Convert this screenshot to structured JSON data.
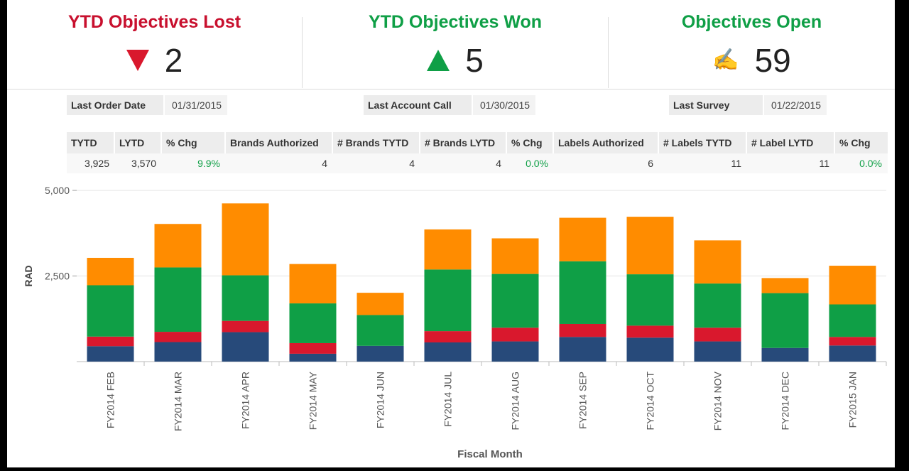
{
  "kpis": {
    "lost": {
      "title": "YTD Objectives Lost",
      "value": "2",
      "icon": "down-triangle-icon",
      "color": "#c8102e"
    },
    "won": {
      "title": "YTD Objectives Won",
      "value": "5",
      "icon": "up-triangle-icon",
      "color": "#0f9f46"
    },
    "open": {
      "title": "Objectives Open",
      "value": "59",
      "icon": "writing-hand-icon",
      "color": "#0f9f46"
    }
  },
  "dates": {
    "last_order": {
      "label": "Last Order Date",
      "value": "01/31/2015"
    },
    "last_call": {
      "label": "Last Account Call",
      "value": "01/30/2015"
    },
    "last_survey": {
      "label": "Last Survey",
      "value": "01/22/2015"
    }
  },
  "metrics": {
    "headers": [
      "TYTD",
      "LYTD",
      "% Chg",
      "Brands Authorized",
      "# Brands TYTD",
      "# Brands LYTD",
      "% Chg",
      "Labels Authorized",
      "# Labels TYTD",
      "# Label LYTD",
      "% Chg"
    ],
    "values": [
      "3,925",
      "3,570",
      "9.9%",
      "4",
      "4",
      "4",
      "0.0%",
      "6",
      "11",
      "11",
      "0.0%"
    ]
  },
  "colors": {
    "navy": "#274a7a",
    "red": "#d9182d",
    "green": "#0f9f46",
    "orange": "#ff8c00"
  },
  "chart_data": {
    "type": "bar",
    "stacked": true,
    "title": "",
    "xlabel": "Fiscal Month",
    "ylabel": "RAD",
    "ylim": [
      0,
      5000
    ],
    "yticks": [
      2500,
      5000
    ],
    "ytick_labels": [
      "2,500",
      "5,000"
    ],
    "categories": [
      "FY2014 FEB",
      "FY2014 MAR",
      "FY2014 APR",
      "FY2014 MAY",
      "FY2014 JUN",
      "FY2014 JUL",
      "FY2014 AUG",
      "FY2014 SEP",
      "FY2014 OCT",
      "FY2014 NOV",
      "FY2014 DEC",
      "FY2015 JAN"
    ],
    "series": [
      {
        "name": "navy",
        "color": "#274a7a",
        "values": [
          450,
          570,
          860,
          230,
          460,
          560,
          590,
          720,
          700,
          590,
          400,
          470
        ]
      },
      {
        "name": "red",
        "color": "#d9182d",
        "values": [
          280,
          300,
          330,
          310,
          0,
          330,
          400,
          380,
          350,
          400,
          0,
          250
        ]
      },
      {
        "name": "green",
        "color": "#0f9f46",
        "values": [
          1500,
          1880,
          1330,
          1160,
          900,
          1800,
          1570,
          1830,
          1500,
          1290,
          1600,
          950
        ]
      },
      {
        "name": "orange",
        "color": "#ff8c00",
        "values": [
          800,
          1270,
          2100,
          1150,
          650,
          1170,
          1040,
          1270,
          1680,
          1260,
          440,
          1130
        ]
      }
    ]
  }
}
